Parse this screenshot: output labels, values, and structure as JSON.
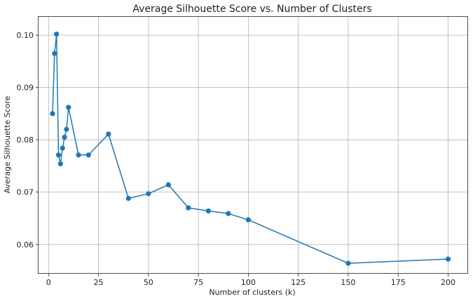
{
  "chart_data": {
    "type": "line",
    "title": "Average Silhouette Score vs. Number of Clusters",
    "xlabel": "Number of clusters (k)",
    "ylabel": "Average Silhouette Score",
    "xlim": [
      -5,
      210
    ],
    "ylim": [
      0.0544,
      0.1035
    ],
    "xticks": [
      0,
      25,
      50,
      75,
      100,
      125,
      150,
      175,
      200
    ],
    "yticks": [
      0.06,
      0.07,
      0.08,
      0.09,
      0.1
    ],
    "ytick_labels": [
      "0.06",
      "0.07",
      "0.08",
      "0.09",
      "0.10"
    ],
    "grid": true,
    "marker": "circle",
    "series": [
      {
        "color": "#1f77b4",
        "x": [
          2,
          3,
          4,
          5,
          6,
          7,
          8,
          9,
          10,
          15,
          20,
          30,
          40,
          50,
          60,
          70,
          80,
          90,
          100,
          150,
          200
        ],
        "values": [
          0.085,
          0.0965,
          0.1002,
          0.0771,
          0.0754,
          0.0784,
          0.0805,
          0.082,
          0.0862,
          0.0771,
          0.0771,
          0.0811,
          0.0688,
          0.0697,
          0.0714,
          0.067,
          0.0664,
          0.0659,
          0.0647,
          0.0564,
          0.0572
        ]
      }
    ]
  }
}
